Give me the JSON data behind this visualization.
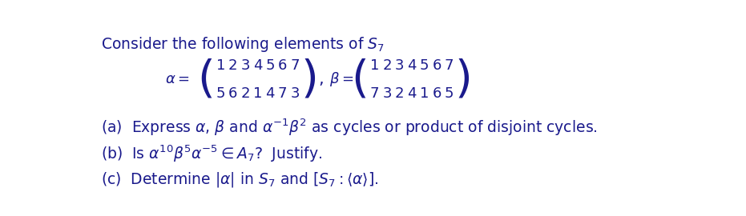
{
  "bg_color": "#ffffff",
  "text_color": "#1a1a8c",
  "title_text": "Consider the following elements of $S_7$",
  "title_fontsize": 13.5,
  "body_fontsize": 13.5,
  "matrix_fontsize": 13.0,
  "line_a_text": "(a)  Express $\\alpha$, $\\beta$ and $\\alpha^{-1}\\beta^{2}$ as cycles or product of disjoint cycles.",
  "line_b_text": "(b)  Is $\\alpha^{10}\\beta^{5}\\alpha^{-5} \\in A_7$?  Justify.",
  "line_c_text": "(c)  Determine $|\\alpha|$ in $S_7$ and $[S_7 : \\langle\\alpha\\rangle]$.",
  "alpha_top": [
    "1",
    "2",
    "3",
    "4",
    "5",
    "6",
    "7"
  ],
  "alpha_bot": [
    "5",
    "6",
    "2",
    "1",
    "4",
    "7",
    "3"
  ],
  "beta_top": [
    "1",
    "2",
    "3",
    "4",
    "5",
    "6",
    "7"
  ],
  "beta_bot": [
    "7",
    "3",
    "2",
    "4",
    "1",
    "6",
    "5"
  ]
}
